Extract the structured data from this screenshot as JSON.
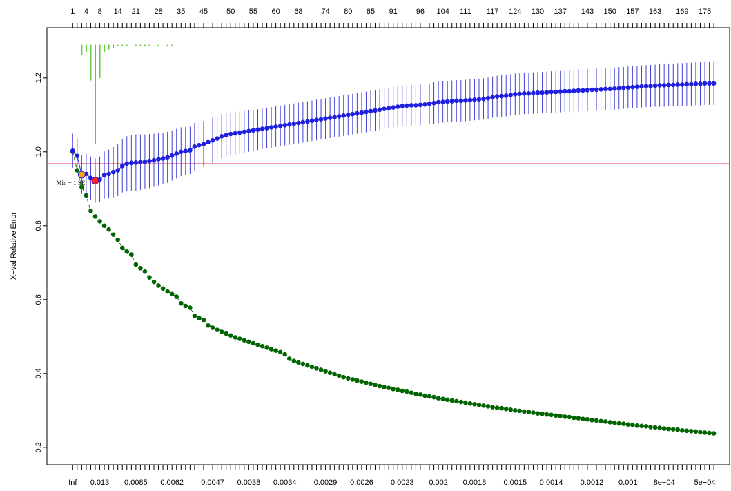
{
  "chart_data": {
    "type": "scatter",
    "ylabel": "X−val Relative Error",
    "xlim": [
      -4.7,
      146.5
    ],
    "ylim": [
      0.153,
      1.336
    ],
    "yticks": [
      0.2,
      0.4,
      0.6,
      0.8,
      {
        "value": 1,
        "label": "1.0"
      },
      1.2
    ],
    "top_ticks": [
      {
        "value": 1,
        "label": "1"
      },
      {
        "value": 4,
        "label": "4"
      },
      {
        "value": 7,
        "label": "8"
      },
      {
        "value": 11,
        "label": "14"
      },
      {
        "value": 15,
        "label": "21"
      },
      {
        "value": 20,
        "label": "28"
      },
      {
        "value": 25,
        "label": "35"
      },
      {
        "value": 30,
        "label": "45"
      },
      {
        "value": 36,
        "label": "50"
      },
      {
        "value": 41,
        "label": "55"
      },
      {
        "value": 46,
        "label": "60"
      },
      {
        "value": 51,
        "label": "68"
      },
      {
        "value": 57,
        "label": "74"
      },
      {
        "value": 62,
        "label": "80"
      },
      {
        "value": 67,
        "label": "85"
      },
      {
        "value": 72,
        "label": "91"
      },
      {
        "value": 78,
        "label": "96"
      },
      {
        "value": 83,
        "label": "104"
      },
      {
        "value": 88,
        "label": "111"
      },
      {
        "value": 94,
        "label": "117"
      },
      {
        "value": 99,
        "label": "124"
      },
      {
        "value": 104,
        "label": "130"
      },
      {
        "value": 109,
        "label": "137"
      },
      {
        "value": 115,
        "label": "143"
      },
      {
        "value": 120,
        "label": "150"
      },
      {
        "value": 125,
        "label": "157"
      },
      {
        "value": 130,
        "label": "163"
      },
      {
        "value": 136,
        "label": "169"
      },
      {
        "value": 141,
        "label": "175"
      }
    ],
    "bottom_ticks": [
      {
        "value": 1,
        "label": "Inf"
      },
      {
        "value": 7,
        "label": "0.013"
      },
      {
        "value": 15,
        "label": "0.0085"
      },
      {
        "value": 23,
        "label": "0.0062"
      },
      {
        "value": 32,
        "label": "0.0047"
      },
      {
        "value": 40,
        "label": "0.0038"
      },
      {
        "value": 48,
        "label": "0.0034"
      },
      {
        "value": 57,
        "label": "0.0029"
      },
      {
        "value": 65,
        "label": "0.0026"
      },
      {
        "value": 74,
        "label": "0.0023"
      },
      {
        "value": 82,
        "label": "0.002"
      },
      {
        "value": 90,
        "label": "0.0018"
      },
      {
        "value": 99,
        "label": "0.0015"
      },
      {
        "value": 107,
        "label": "0.0014"
      },
      {
        "value": 116,
        "label": "0.0012"
      },
      {
        "value": 124,
        "label": "0.001"
      },
      {
        "value": 132,
        "label": "8e−04"
      },
      {
        "value": 141,
        "label": "5e−04"
      }
    ],
    "x": [
      1,
      2,
      3,
      4,
      5,
      6,
      7,
      8,
      9,
      10,
      11,
      12,
      13,
      14,
      15,
      16,
      17,
      18,
      19,
      20,
      21,
      22,
      23,
      24,
      25,
      26,
      27,
      28,
      29,
      30,
      31,
      32,
      33,
      34,
      35,
      36,
      37,
      38,
      39,
      40,
      41,
      42,
      43,
      44,
      45,
      46,
      47,
      48,
      49,
      50,
      51,
      52,
      53,
      54,
      55,
      56,
      57,
      58,
      59,
      60,
      61,
      62,
      63,
      64,
      65,
      66,
      67,
      68,
      69,
      70,
      71,
      72,
      73,
      74,
      75,
      76,
      77,
      78,
      79,
      80,
      81,
      82,
      83,
      84,
      85,
      86,
      87,
      88,
      89,
      90,
      91,
      92,
      93,
      94,
      95,
      96,
      97,
      98,
      99,
      100,
      101,
      102,
      103,
      104,
      105,
      106,
      107,
      108,
      109,
      110,
      111,
      112,
      113,
      114,
      115,
      116,
      117,
      118,
      119,
      120,
      121,
      122,
      123,
      124,
      125,
      126,
      127,
      128,
      129,
      130,
      131,
      132,
      133,
      134,
      135,
      136,
      137,
      138,
      139,
      140,
      141,
      142,
      143
    ],
    "series": [
      {
        "color": "#006400",
        "dash": true,
        "values": [
          1.0,
          0.95,
          0.905,
          0.882,
          0.84,
          0.825,
          0.812,
          0.8,
          0.79,
          0.776,
          0.762,
          0.74,
          0.73,
          0.722,
          0.695,
          0.685,
          0.676,
          0.66,
          0.648,
          0.638,
          0.63,
          0.622,
          0.615,
          0.608,
          0.59,
          0.583,
          0.578,
          0.556,
          0.55,
          0.545,
          0.53,
          0.524,
          0.518,
          0.513,
          0.508,
          0.503,
          0.498,
          0.494,
          0.49,
          0.486,
          0.482,
          0.478,
          0.474,
          0.47,
          0.466,
          0.462,
          0.458,
          0.452,
          0.44,
          0.434,
          0.43,
          0.426,
          0.422,
          0.418,
          0.414,
          0.41,
          0.406,
          0.402,
          0.398,
          0.394,
          0.39,
          0.387,
          0.384,
          0.381,
          0.378,
          0.375,
          0.372,
          0.369,
          0.366,
          0.363,
          0.361,
          0.358,
          0.356,
          0.353,
          0.351,
          0.348,
          0.345,
          0.343,
          0.34,
          0.338,
          0.336,
          0.333,
          0.331,
          0.329,
          0.327,
          0.325,
          0.323,
          0.321,
          0.319,
          0.317,
          0.315,
          0.313,
          0.311,
          0.309,
          0.307,
          0.306,
          0.304,
          0.302,
          0.3,
          0.299,
          0.297,
          0.296,
          0.294,
          0.292,
          0.291,
          0.289,
          0.288,
          0.286,
          0.285,
          0.283,
          0.282,
          0.28,
          0.279,
          0.277,
          0.276,
          0.274,
          0.273,
          0.271,
          0.27,
          0.268,
          0.267,
          0.265,
          0.264,
          0.262,
          0.261,
          0.259,
          0.258,
          0.257,
          0.255,
          0.254,
          0.253,
          0.251,
          0.25,
          0.249,
          0.248,
          0.246,
          0.245,
          0.244,
          0.243,
          0.241,
          0.24,
          0.239,
          0.238
        ]
      },
      {
        "color": "#1f1fe0",
        "dash": false,
        "error_color": "#4040d0",
        "values": [
          1.003,
          0.989,
          0.938,
          0.94,
          0.929,
          0.922,
          0.925,
          0.937,
          0.94,
          0.945,
          0.95,
          0.962,
          0.968,
          0.97,
          0.971,
          0.972,
          0.973,
          0.975,
          0.977,
          0.98,
          0.982,
          0.985,
          0.99,
          0.995,
          1.0,
          1.002,
          1.004,
          1.014,
          1.018,
          1.021,
          1.026,
          1.031,
          1.036,
          1.042,
          1.045,
          1.048,
          1.05,
          1.052,
          1.054,
          1.056,
          1.058,
          1.06,
          1.062,
          1.064,
          1.066,
          1.068,
          1.07,
          1.072,
          1.074,
          1.076,
          1.078,
          1.08,
          1.082,
          1.084,
          1.086,
          1.088,
          1.09,
          1.092,
          1.094,
          1.096,
          1.098,
          1.1,
          1.102,
          1.104,
          1.106,
          1.108,
          1.11,
          1.112,
          1.114,
          1.116,
          1.118,
          1.12,
          1.122,
          1.124,
          1.125,
          1.126,
          1.126,
          1.127,
          1.128,
          1.13,
          1.132,
          1.134,
          1.135,
          1.136,
          1.137,
          1.138,
          1.138,
          1.139,
          1.14,
          1.141,
          1.142,
          1.143,
          1.145,
          1.148,
          1.15,
          1.151,
          1.152,
          1.154,
          1.156,
          1.157,
          1.158,
          1.158,
          1.159,
          1.16,
          1.16,
          1.161,
          1.162,
          1.162,
          1.163,
          1.164,
          1.164,
          1.165,
          1.166,
          1.166,
          1.167,
          1.168,
          1.168,
          1.169,
          1.17,
          1.17,
          1.171,
          1.172,
          1.173,
          1.174,
          1.175,
          1.176,
          1.177,
          1.178,
          1.178,
          1.179,
          1.18,
          1.18,
          1.181,
          1.181,
          1.182,
          1.182,
          1.183,
          1.183,
          1.184,
          1.184,
          1.185,
          1.185,
          1.185
        ],
        "errors": [
          0.046,
          0.048,
          0.052,
          0.055,
          0.058,
          0.06,
          0.062,
          0.064,
          0.066,
          0.068,
          0.07,
          0.072,
          0.074,
          0.075,
          0.076,
          0.075,
          0.074,
          0.073,
          0.072,
          0.071,
          0.07,
          0.069,
          0.068,
          0.067,
          0.066,
          0.065,
          0.064,
          0.064,
          0.063,
          0.062,
          0.062,
          0.061,
          0.06,
          0.06,
          0.059,
          0.058,
          0.058,
          0.057,
          0.057,
          0.056,
          0.055,
          0.055,
          0.055,
          0.055,
          0.055,
          0.055,
          0.055,
          0.055,
          0.055,
          0.055,
          0.055,
          0.055,
          0.055,
          0.055,
          0.055,
          0.055,
          0.055,
          0.055,
          0.055,
          0.055,
          0.055,
          0.055,
          0.055,
          0.055,
          0.055,
          0.055,
          0.055,
          0.055,
          0.055,
          0.055,
          0.055,
          0.055,
          0.055,
          0.055,
          0.055,
          0.055,
          0.055,
          0.055,
          0.055,
          0.055,
          0.056,
          0.056,
          0.056,
          0.056,
          0.056,
          0.056,
          0.056,
          0.056,
          0.056,
          0.056,
          0.056,
          0.056,
          0.056,
          0.056,
          0.056,
          0.056,
          0.056,
          0.056,
          0.056,
          0.056,
          0.056,
          0.056,
          0.056,
          0.056,
          0.056,
          0.056,
          0.056,
          0.056,
          0.056,
          0.056,
          0.057,
          0.057,
          0.057,
          0.057,
          0.057,
          0.057,
          0.057,
          0.057,
          0.057,
          0.057,
          0.057,
          0.057,
          0.057,
          0.057,
          0.057,
          0.057,
          0.057,
          0.057,
          0.057,
          0.057,
          0.058,
          0.058,
          0.058,
          0.058,
          0.058,
          0.058,
          0.058,
          0.058,
          0.058,
          0.058,
          0.058,
          0.058,
          0.058
        ],
        "highlight": [
          {
            "index": 5,
            "color": "#ff2020"
          },
          {
            "index": 2,
            "color": "#ffa500"
          }
        ]
      }
    ],
    "hline": {
      "value": 0.968,
      "color": "#e0507a",
      "label": "Min + 1 SE",
      "label_color": "#c04030"
    },
    "spikes": {
      "color": "#66c844",
      "top": 1.29,
      "x": [
        3,
        4,
        5,
        6,
        7,
        8,
        9,
        10,
        11,
        12,
        13,
        15,
        16,
        17,
        18,
        20,
        22,
        23
      ],
      "values": [
        1.262,
        1.271,
        1.193,
        1.022,
        1.2,
        1.269,
        1.277,
        1.282,
        1.286,
        1.287,
        1.287,
        1.287,
        1.287,
        1.287,
        1.287,
        1.287,
        1.287,
        1.287
      ]
    }
  }
}
